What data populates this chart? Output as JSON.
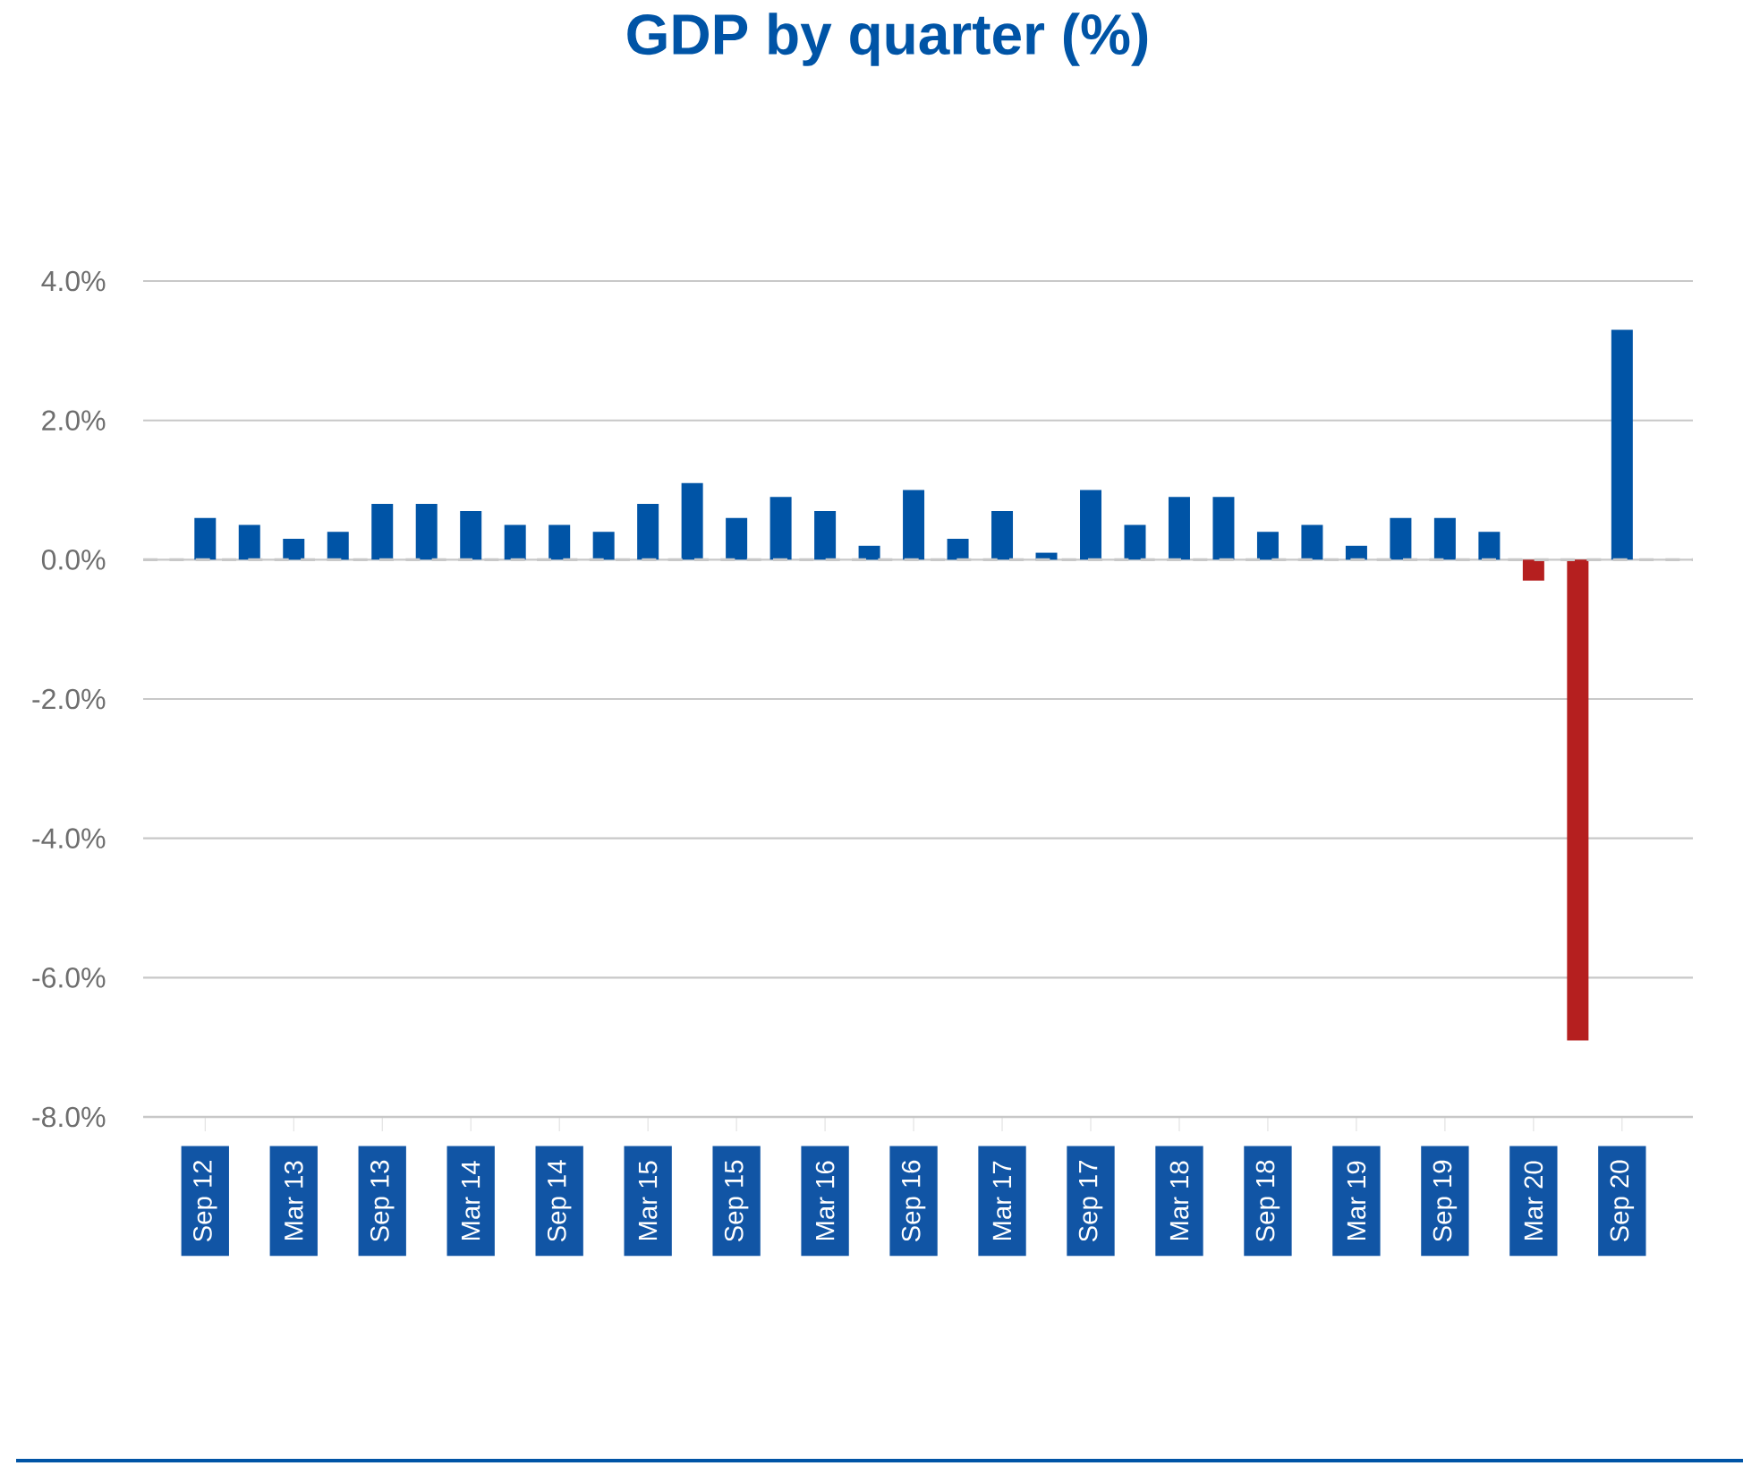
{
  "chart_data": {
    "type": "bar",
    "title": "GDP by quarter (%)",
    "categories": [
      "Sep 12",
      null,
      "Mar 13",
      null,
      "Sep 13",
      null,
      "Mar 14",
      null,
      "Sep 14",
      null,
      "Mar 15",
      null,
      "Sep 15",
      null,
      "Mar 16",
      null,
      "Sep 16",
      null,
      "Mar 17",
      null,
      "Sep 17",
      null,
      "Mar 18",
      null,
      "Sep 18",
      null,
      "Mar 19",
      null,
      "Sep 19",
      null,
      "Mar 20",
      null,
      "Sep 20"
    ],
    "values": [
      0.6,
      0.5,
      0.3,
      0.4,
      0.8,
      0.8,
      0.7,
      0.5,
      0.5,
      0.4,
      0.8,
      1.1,
      0.6,
      0.9,
      0.7,
      0.2,
      1.0,
      0.3,
      0.7,
      0.1,
      1.0,
      0.5,
      0.9,
      0.9,
      0.4,
      0.5,
      0.2,
      0.6,
      0.6,
      0.4,
      -0.3,
      -6.9,
      3.3
    ],
    "colors": [
      "#0054a6",
      "#0054a6",
      "#0054a6",
      "#0054a6",
      "#0054a6",
      "#0054a6",
      "#0054a6",
      "#0054a6",
      "#0054a6",
      "#0054a6",
      "#0054a6",
      "#0054a6",
      "#0054a6",
      "#0054a6",
      "#0054a6",
      "#0054a6",
      "#0054a6",
      "#0054a6",
      "#0054a6",
      "#0054a6",
      "#0054a6",
      "#0054a6",
      "#0054a6",
      "#0054a6",
      "#0054a6",
      "#0054a6",
      "#0054a6",
      "#0054a6",
      "#0054a6",
      "#0054a6",
      "#b51f1f",
      "#b51f1f",
      "#0054a6"
    ],
    "ylim": [
      -8,
      4
    ],
    "yticks": [
      {
        "value": -8,
        "label": "-8.0%"
      },
      {
        "value": -6,
        "label": "-6.0%"
      },
      {
        "value": -4,
        "label": "-4.0%"
      },
      {
        "value": -2,
        "label": "-2.0%"
      },
      {
        "value": 0,
        "label": "0.0%"
      },
      {
        "value": 2,
        "label": "2.0%"
      },
      {
        "value": 4,
        "label": "4.0%"
      }
    ],
    "grid": "y",
    "ref_lines": [
      {
        "axis": "y",
        "value": 0,
        "color": "#c8c8c8",
        "line_style": "dashed"
      }
    ]
  }
}
